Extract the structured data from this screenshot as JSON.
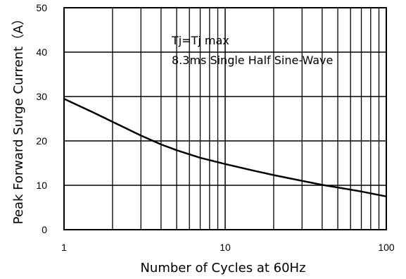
{
  "chart_data": {
    "type": "line",
    "title": "",
    "xlabel": "Number of Cycles at 60Hz",
    "ylabel": "Peak Forward Surge Current（A）",
    "x_scale": "log",
    "xlim": [
      1,
      100
    ],
    "ylim": [
      0,
      50
    ],
    "x_ticks": [
      1,
      10,
      100
    ],
    "y_ticks": [
      0,
      10,
      20,
      30,
      40,
      50
    ],
    "grid": true,
    "annotations": [
      "Tj=Tj max",
      "8.3ms Single Half Sine-Wave"
    ],
    "series": [
      {
        "x": [
          1,
          1.5,
          2,
          3,
          4,
          5,
          7,
          10,
          15,
          20,
          30,
          40,
          50,
          70,
          100
        ],
        "y": [
          29.5,
          26.5,
          24.3,
          21.2,
          19.2,
          17.9,
          16.2,
          14.8,
          13.3,
          12.3,
          11.0,
          10.1,
          9.5,
          8.6,
          7.5
        ]
      }
    ]
  }
}
